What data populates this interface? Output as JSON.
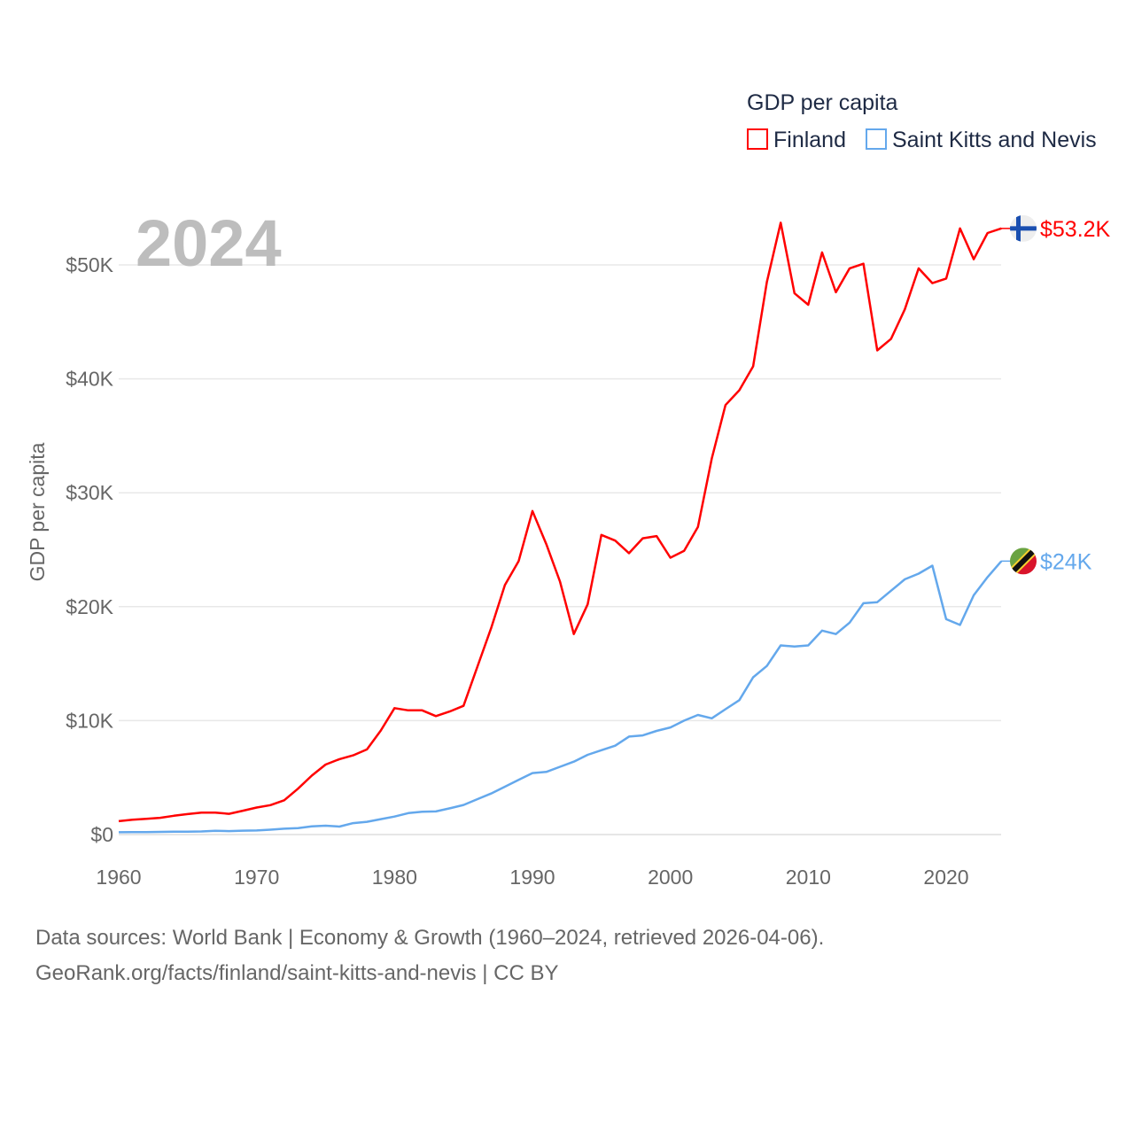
{
  "chart_data": {
    "type": "line",
    "title": "",
    "year_label": "2024",
    "ylabel": "GDP per capita",
    "xlabel": "",
    "xlim": [
      1960,
      2024
    ],
    "ylim": [
      0,
      55000
    ],
    "x_ticks": [
      "1960",
      "1970",
      "1980",
      "1990",
      "2000",
      "2010",
      "2020"
    ],
    "y_ticks": [
      {
        "value": 0,
        "label": "$0"
      },
      {
        "value": 10000,
        "label": "$10K"
      },
      {
        "value": 20000,
        "label": "$20K"
      },
      {
        "value": 30000,
        "label": "$30K"
      },
      {
        "value": 40000,
        "label": "$40K"
      },
      {
        "value": 50000,
        "label": "$50K"
      }
    ],
    "grid": true,
    "legend": {
      "title": "GDP per capita",
      "placement": "top-right"
    },
    "x": [
      1960,
      1961,
      1962,
      1963,
      1964,
      1965,
      1966,
      1967,
      1968,
      1969,
      1970,
      1971,
      1972,
      1973,
      1974,
      1975,
      1976,
      1977,
      1978,
      1979,
      1980,
      1981,
      1982,
      1983,
      1984,
      1985,
      1986,
      1987,
      1988,
      1989,
      1990,
      1991,
      1992,
      1993,
      1994,
      1995,
      1996,
      1997,
      1998,
      1999,
      2000,
      2001,
      2002,
      2003,
      2004,
      2005,
      2006,
      2007,
      2008,
      2009,
      2010,
      2011,
      2012,
      2013,
      2014,
      2015,
      2016,
      2017,
      2018,
      2019,
      2020,
      2021,
      2022,
      2023,
      2024
    ],
    "series": [
      {
        "name": "Finland",
        "color": "#ff0000",
        "end_label": "$53.2K",
        "flag": "finland-flag",
        "values": [
          1177,
          1310,
          1380,
          1470,
          1650,
          1800,
          1920,
          1920,
          1820,
          2090,
          2370,
          2580,
          3010,
          4030,
          5170,
          6140,
          6620,
          6950,
          7470,
          9130,
          11100,
          10900,
          10900,
          10400,
          10800,
          11300,
          14700,
          18100,
          21900,
          24000,
          28400,
          25500,
          22200,
          17600,
          20200,
          26300,
          25800,
          24700,
          26000,
          26200,
          24300,
          24900,
          27000,
          33000,
          37700,
          39000,
          41100,
          48500,
          53700,
          47500,
          46500,
          51100,
          47600,
          49700,
          50100,
          42500,
          43500,
          46100,
          49700,
          48400,
          48800,
          53200,
          50500,
          52800,
          53200
        ]
      },
      {
        "name": "Saint Kitts and Nevis",
        "color": "#64a8ec",
        "end_label": "$24K",
        "flag": "saint-kitts-and-nevis-flag",
        "values": [
          200,
          210,
          215,
          230,
          250,
          260,
          270,
          330,
          300,
          340,
          360,
          430,
          510,
          560,
          720,
          780,
          700,
          1000,
          1120,
          1350,
          1580,
          1880,
          2000,
          2030,
          2300,
          2600,
          3100,
          3600,
          4200,
          4800,
          5400,
          5500,
          5950,
          6400,
          7000,
          7400,
          7800,
          8600,
          8700,
          9100,
          9400,
          10000,
          10500,
          10200,
          11000,
          11800,
          13800,
          14800,
          16600,
          16500,
          16600,
          17900,
          17600,
          18600,
          20300,
          20400,
          21400,
          22400,
          22900,
          23600,
          18900,
          18400,
          21000,
          22600,
          24000
        ]
      }
    ]
  },
  "footer": {
    "line1": "Data sources: World Bank | Economy & Growth (1960–2024, retrieved 2026-04-06).",
    "line2": "GeoRank.org/facts/finland/saint-kitts-and-nevis | CC BY"
  }
}
